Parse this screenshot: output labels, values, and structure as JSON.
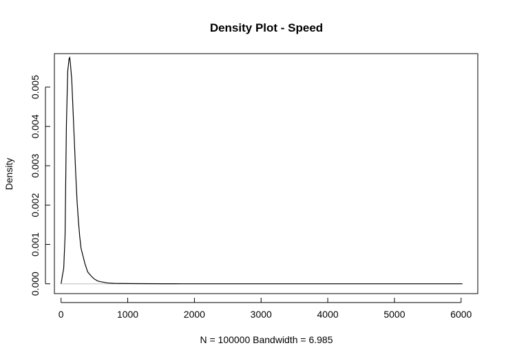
{
  "chart_data": {
    "type": "line",
    "title": "Density Plot - Speed",
    "xlabel": "N = 100000   Bandwidth = 6.985",
    "ylabel": "Density",
    "xlim": [
      -100,
      6250
    ],
    "ylim": [
      -0.00025,
      0.00585
    ],
    "x_ticks": [
      0,
      1000,
      2000,
      3000,
      4000,
      5000,
      6000
    ],
    "x_tick_labels": [
      "0",
      "1000",
      "2000",
      "3000",
      "4000",
      "5000",
      "6000"
    ],
    "y_ticks": [
      0.0,
      0.001,
      0.002,
      0.003,
      0.004,
      0.005
    ],
    "y_tick_labels": [
      "0.000",
      "0.001",
      "0.002",
      "0.003",
      "0.004",
      "0.005"
    ],
    "grid": false,
    "series": [
      {
        "x": [
          0,
          20,
          40,
          60,
          80,
          100,
          120,
          130,
          140,
          160,
          180,
          200,
          220,
          240,
          260,
          280,
          300,
          330,
          360,
          400,
          450,
          500,
          550,
          600,
          700,
          800,
          1000,
          1200,
          1500,
          1800,
          2500,
          3500,
          4500,
          5500,
          6020
        ],
        "y": [
          0.0,
          0.0002,
          0.0004,
          0.0012,
          0.004,
          0.0054,
          0.00572,
          0.00575,
          0.0056,
          0.0052,
          0.0044,
          0.0036,
          0.0028,
          0.0021,
          0.0016,
          0.0012,
          0.0009,
          0.0007,
          0.0005,
          0.0003,
          0.0002,
          0.00012,
          7e-05,
          5e-05,
          2e-05,
          1e-05,
          5e-06,
          3e-06,
          1e-06,
          5e-07,
          2e-07,
          1e-07,
          1e-07,
          1e-07,
          1e-07
        ]
      }
    ]
  }
}
